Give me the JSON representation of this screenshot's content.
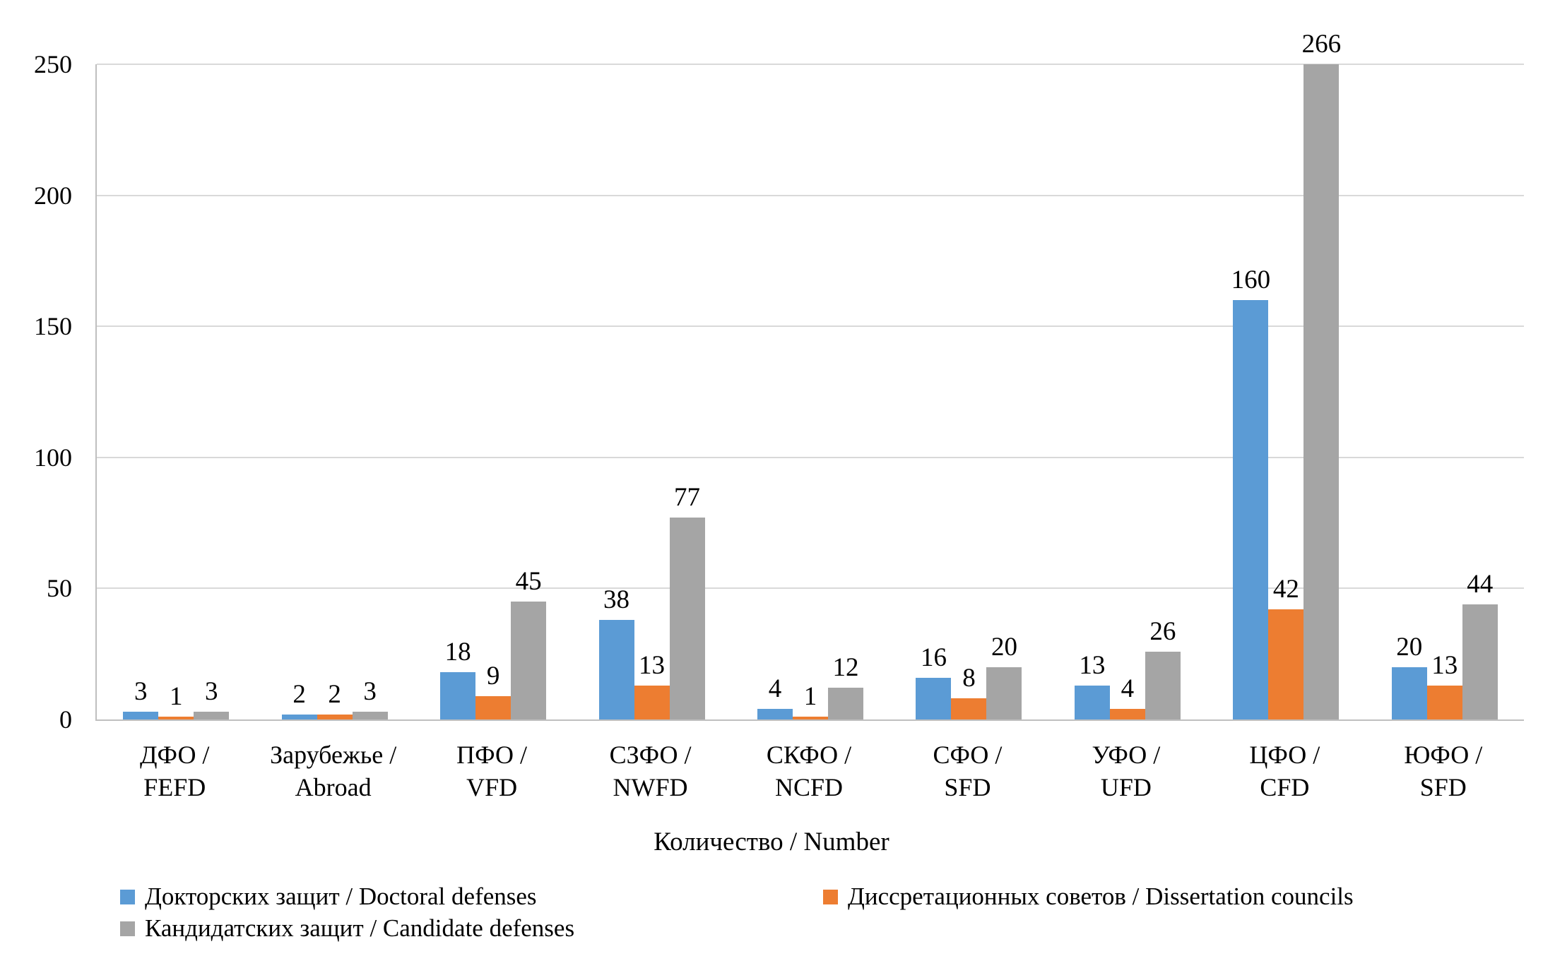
{
  "chart_data": {
    "type": "bar",
    "title": "",
    "xlabel": "Количество / Number",
    "ylabel": "",
    "ylim": [
      0,
      250
    ],
    "yticks": [
      0,
      50,
      100,
      150,
      200,
      250
    ],
    "grid": true,
    "legend_position": "bottom",
    "note": "Gray bar value 266 exceeds axis max 250 and is clipped at plot top",
    "categories": [
      {
        "label": "ДФО / FEFD",
        "line1": "ДФО /",
        "line2": "FEFD"
      },
      {
        "label": "Зарубежье / Abroad",
        "line1": "Зарубежье /",
        "line2": "Abroad"
      },
      {
        "label": "ПФО / VFD",
        "line1": "ПФО /",
        "line2": "VFD"
      },
      {
        "label": "СЗФО / NWFD",
        "line1": "СЗФО /",
        "line2": "NWFD"
      },
      {
        "label": "СКФО / NCFD",
        "line1": "СКФО /",
        "line2": "NCFD"
      },
      {
        "label": "СФО / SFD",
        "line1": "СФО /",
        "line2": "SFD"
      },
      {
        "label": "УФО / UFD",
        "line1": "УФО /",
        "line2": "UFD"
      },
      {
        "label": "ЦФО / CFD",
        "line1": "ЦФО /",
        "line2": "CFD"
      },
      {
        "label": "ЮФО / SFD",
        "line1": "ЮФО /",
        "line2": "SFD"
      }
    ],
    "series": [
      {
        "name": "Докторских защит / Doctoral defenses",
        "color": "#5B9BD5",
        "values": [
          3,
          2,
          18,
          38,
          4,
          16,
          13,
          160,
          20
        ]
      },
      {
        "name": "Диссретационных советов / Dissertation councils",
        "color": "#ED7D31",
        "values": [
          1,
          2,
          9,
          13,
          1,
          8,
          4,
          42,
          13
        ]
      },
      {
        "name": "Кандидатских защит / Candidate defenses",
        "color": "#A5A5A5",
        "values": [
          3,
          3,
          45,
          77,
          12,
          20,
          26,
          266,
          44
        ]
      }
    ]
  },
  "axis": {
    "x_title": "Количество / Number",
    "y_tick_labels": [
      "0",
      "50",
      "100",
      "150",
      "200",
      "250"
    ]
  },
  "colors": {
    "background": "#FFFFFF",
    "text": "#000000",
    "gridline": "#D9D9D9",
    "axis_line": "#BFBFBF",
    "series_blue": "#5B9BD5",
    "series_orange": "#ED7D31",
    "series_gray": "#A5A5A5"
  }
}
